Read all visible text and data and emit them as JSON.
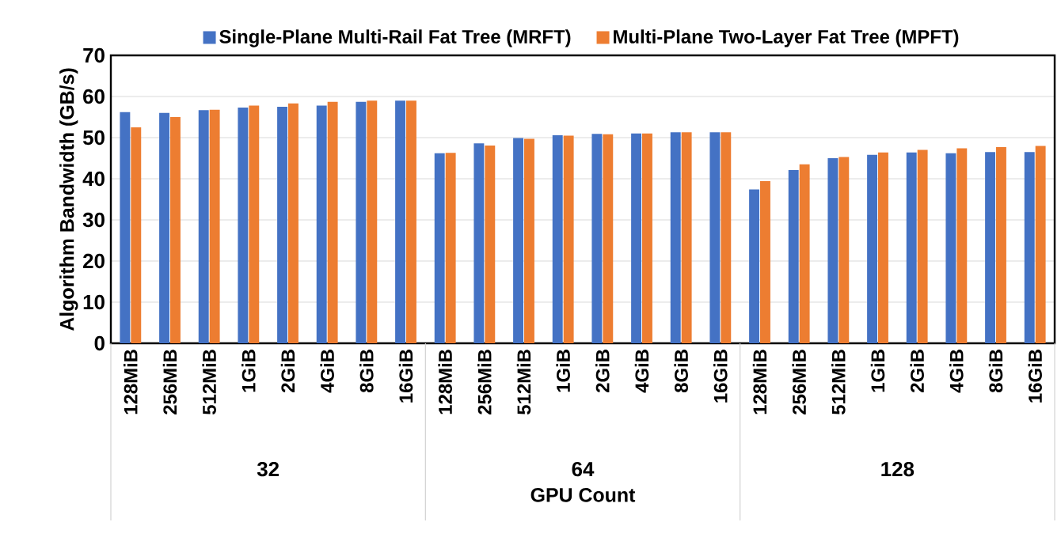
{
  "chart_data": {
    "type": "bar",
    "ylabel": "Algorithm Bandwidth (GB/s)",
    "xlabel": "GPU Count",
    "categories": [
      "128MiB",
      "256MiB",
      "512MiB",
      "1GiB",
      "2GiB",
      "4GiB",
      "8GiB",
      "16GiB",
      "128MiB",
      "256MiB",
      "512MiB",
      "1GiB",
      "2GiB",
      "4GiB",
      "8GiB",
      "16GiB",
      "128MiB",
      "256MiB",
      "512MiB",
      "1GiB",
      "2GiB",
      "4GiB",
      "8GiB",
      "16GiB"
    ],
    "annotations": [
      "32",
      "64",
      "128"
    ],
    "series": [
      {
        "name": "Single-Plane Multi-Rail Fat Tree (MRFT)",
        "color": "#4472c4",
        "values": [
          56.2,
          56.0,
          56.7,
          57.3,
          57.5,
          57.8,
          58.7,
          59.0,
          46.2,
          48.6,
          49.9,
          50.6,
          50.9,
          51.0,
          51.3,
          51.3,
          37.4,
          42.1,
          45.0,
          45.8,
          46.4,
          46.2,
          46.5,
          46.5
        ]
      },
      {
        "name": "Multi-Plane Two-Layer Fat Tree (MPFT)",
        "color": "#ed7d31",
        "values": [
          52.5,
          55.0,
          56.8,
          57.8,
          58.3,
          58.7,
          59.0,
          59.0,
          46.3,
          48.1,
          49.7,
          50.5,
          50.8,
          51.0,
          51.3,
          51.3,
          39.4,
          43.5,
          45.3,
          46.4,
          47.0,
          47.4,
          47.7,
          48.0
        ]
      }
    ],
    "ylim": [
      0,
      70
    ],
    "yticks": [
      0,
      10,
      20,
      30,
      40,
      50,
      60,
      70
    ],
    "grid": "y",
    "legend": "top"
  }
}
